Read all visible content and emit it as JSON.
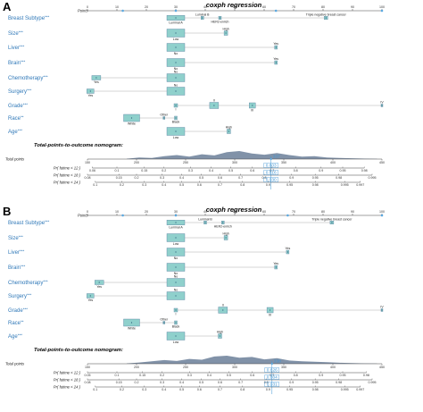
{
  "panels": [
    {
      "letter": "A",
      "title": "coxph regression",
      "points_label": "Points",
      "points_ticks": [
        "0",
        "10",
        "20",
        "30",
        "40",
        "50",
        "60",
        "70",
        "80",
        "90",
        "100"
      ],
      "selected_points": [
        12,
        30,
        64,
        100
      ],
      "variables": [
        {
          "label": "Breast Subtype",
          "sig": "***",
          "levels": [
            {
              "name": "Luminal A",
              "points": 30,
              "box_w": 20,
              "box_h": 5.5
            },
            {
              "name": "Luminal B",
              "points": 39,
              "box_w": 3,
              "box_h": 3.5
            },
            {
              "name": "HER2-enrich",
              "points": 45,
              "box_w": 3,
              "box_h": 3.5
            },
            {
              "name": "Triple negative breast cancer",
              "points": 81,
              "box_w": 4,
              "box_h": 3.5
            }
          ]
        },
        {
          "label": "Size",
          "sig": "***",
          "levels": [
            {
              "name": "Low",
              "points": 30,
              "box_w": 20,
              "box_h": 9
            },
            {
              "name": "High",
              "points": 47,
              "box_w": 4,
              "box_h": 5
            }
          ]
        },
        {
          "label": "Liver",
          "sig": "***",
          "levels": [
            {
              "name": "No",
              "points": 30,
              "box_w": 20,
              "box_h": 9
            },
            {
              "name": "Yes",
              "points": 64,
              "box_w": 3,
              "box_h": 4
            }
          ]
        },
        {
          "label": "Brain",
          "sig": "***",
          "levels": [
            {
              "name": "No",
              "points": 30,
              "box_w": 20,
              "box_h": 9
            },
            {
              "name": "Yes",
              "points": 64,
              "box_w": 3,
              "box_h": 4
            }
          ]
        },
        {
          "label": "Chemotherapy",
          "sig": "***",
          "levels": [
            {
              "name": "Yes",
              "points": 3,
              "box_w": 10,
              "box_h": 5
            },
            {
              "name": "No",
              "points": 30,
              "box_w": 20,
              "box_h": 9
            }
          ]
        },
        {
          "label": "Surgery",
          "sig": "***",
          "levels": [
            {
              "name": "Yes",
              "points": 1,
              "box_w": 8,
              "box_h": 5
            },
            {
              "name": "No",
              "points": 30,
              "box_w": 20,
              "box_h": 9
            }
          ]
        },
        {
          "label": "Grade",
          "sig": "***",
          "levels": [
            {
              "name": "I",
              "points": 30,
              "box_w": 4,
              "box_h": 4
            },
            {
              "name": "II",
              "points": 43,
              "box_w": 10,
              "box_h": 7
            },
            {
              "name": "III",
              "points": 56,
              "box_w": 7,
              "box_h": 6
            },
            {
              "name": "IV",
              "points": 100,
              "box_w": 2,
              "box_h": 3
            }
          ]
        },
        {
          "label": "Race",
          "sig": "**",
          "levels": [
            {
              "name": "White",
              "points": 15,
              "box_w": 18,
              "box_h": 8
            },
            {
              "name": "Other",
              "points": 26,
              "box_w": 2,
              "box_h": 3
            },
            {
              "name": "Black",
              "points": 30,
              "box_w": 3,
              "box_h": 4
            }
          ]
        },
        {
          "label": "Age",
          "sig": "***",
          "levels": [
            {
              "name": "Low",
              "points": 30,
              "box_w": 20,
              "box_h": 9
            },
            {
              "name": "High",
              "points": 48,
              "box_w": 4,
              "box_h": 5
            }
          ]
        }
      ],
      "nomogram_title": "Total-points-to-outcome nomogram:",
      "total_points_label": "Total points",
      "total_min": 150,
      "total_max": 450,
      "total_ticks": [
        "150",
        "200",
        "250",
        "300",
        "350",
        "400",
        "450"
      ],
      "total_selected": 337,
      "total_readout": "337",
      "density": [
        0.05,
        0.2,
        0.15,
        0.35,
        0.5,
        0.3,
        0.6,
        0.45,
        0.85,
        1.0,
        0.7,
        0.55,
        0.75,
        0.5,
        0.3,
        0.35,
        0.2,
        0.15,
        0.1,
        0.06,
        0.03
      ],
      "prob_axes": [
        {
          "label": "Pr( futime < 12 )",
          "readout": "0.603",
          "ticks": [
            {
              "v": "0.06",
              "t": 155
            },
            {
              "v": "0.1",
              "t": 180
            },
            {
              "v": "0.15",
              "t": 208
            },
            {
              "v": "0.2",
              "t": 228
            },
            {
              "v": "0.3",
              "t": 255
            },
            {
              "v": "0.4",
              "t": 276
            },
            {
              "v": "0.5",
              "t": 296
            },
            {
              "v": "0.6",
              "t": 318
            },
            {
              "v": "0.7",
              "t": 338
            },
            {
              "v": "0.8",
              "t": 362
            },
            {
              "v": "0.9",
              "t": 388
            },
            {
              "v": "0.95",
              "t": 410
            },
            {
              "v": "0.98",
              "t": 432
            }
          ]
        },
        {
          "label": "Pr( futime < 18 )",
          "readout": "0.816",
          "ticks": [
            {
              "v": "0.08",
              "t": 150
            },
            {
              "v": "0.15",
              "t": 182
            },
            {
              "v": "0.2",
              "t": 200
            },
            {
              "v": "0.3",
              "t": 226
            },
            {
              "v": "0.4",
              "t": 246
            },
            {
              "v": "0.5",
              "t": 266
            },
            {
              "v": "0.6",
              "t": 285
            },
            {
              "v": "0.7",
              "t": 306
            },
            {
              "v": "0.8",
              "t": 330
            },
            {
              "v": "0.9",
              "t": 358
            },
            {
              "v": "0.95",
              "t": 382
            },
            {
              "v": "0.98",
              "t": 406
            },
            {
              "v": "0.995",
              "t": 440
            }
          ]
        },
        {
          "label": "Pr( futime < 24 )",
          "readout": "0.930",
          "ticks": [
            {
              "v": "0.1",
              "t": 158
            },
            {
              "v": "0.2",
              "t": 185
            },
            {
              "v": "0.3",
              "t": 208
            },
            {
              "v": "0.4",
              "t": 228
            },
            {
              "v": "0.5",
              "t": 246
            },
            {
              "v": "0.6",
              "t": 264
            },
            {
              "v": "0.7",
              "t": 285
            },
            {
              "v": "0.8",
              "t": 308
            },
            {
              "v": "0.9",
              "t": 334
            },
            {
              "v": "0.95",
              "t": 356
            },
            {
              "v": "0.98",
              "t": 382
            },
            {
              "v": "0.995",
              "t": 412
            },
            {
              "v": "0.997",
              "t": 428
            }
          ]
        }
      ]
    },
    {
      "letter": "B",
      "title": "coxph regression",
      "points_label": "Points",
      "points_ticks": [
        "0",
        "10",
        "20",
        "30",
        "40",
        "50",
        "60",
        "70",
        "80",
        "90",
        "100"
      ],
      "selected_points": [
        12,
        30,
        68,
        100
      ],
      "variables": [
        {
          "label": "Breast Subtype",
          "sig": "***",
          "levels": [
            {
              "name": "Luminal A",
              "points": 30,
              "box_w": 20,
              "box_h": 5.5
            },
            {
              "name": "Luminal B",
              "points": 40,
              "box_w": 3,
              "box_h": 3.5
            },
            {
              "name": "HER2-enrich",
              "points": 46,
              "box_w": 3,
              "box_h": 3.5
            },
            {
              "name": "Triple negative breast cancer",
              "points": 83,
              "box_w": 4,
              "box_h": 3.5
            }
          ]
        },
        {
          "label": "Size",
          "sig": "***",
          "levels": [
            {
              "name": "Low",
              "points": 30,
              "box_w": 20,
              "box_h": 9
            },
            {
              "name": "High",
              "points": 47,
              "box_w": 4,
              "box_h": 5
            }
          ]
        },
        {
          "label": "Liver",
          "sig": "***",
          "levels": [
            {
              "name": "No",
              "points": 30,
              "box_w": 20,
              "box_h": 9
            },
            {
              "name": "Yes",
              "points": 68,
              "box_w": 3,
              "box_h": 4
            }
          ]
        },
        {
          "label": "Brain",
          "sig": "***",
          "levels": [
            {
              "name": "No",
              "points": 30,
              "box_w": 20,
              "box_h": 9
            },
            {
              "name": "Yes",
              "points": 64,
              "box_w": 3,
              "box_h": 4
            }
          ]
        },
        {
          "label": "Chemotherapy",
          "sig": "***",
          "levels": [
            {
              "name": "Yes",
              "points": 4,
              "box_w": 10,
              "box_h": 5
            },
            {
              "name": "No",
              "points": 30,
              "box_w": 20,
              "box_h": 9
            }
          ]
        },
        {
          "label": "Surgery",
          "sig": "***",
          "levels": [
            {
              "name": "Yes",
              "points": 1,
              "box_w": 8,
              "box_h": 5
            },
            {
              "name": "No",
              "points": 30,
              "box_w": 20,
              "box_h": 9
            }
          ]
        },
        {
          "label": "Grade",
          "sig": "***",
          "levels": [
            {
              "name": "I",
              "points": 30,
              "box_w": 4,
              "box_h": 4
            },
            {
              "name": "II",
              "points": 46,
              "box_w": 10,
              "box_h": 7
            },
            {
              "name": "III",
              "points": 62,
              "box_w": 7,
              "box_h": 6
            },
            {
              "name": "IV",
              "points": 100,
              "box_w": 2,
              "box_h": 3
            }
          ]
        },
        {
          "label": "Race",
          "sig": "**",
          "levels": [
            {
              "name": "White",
              "points": 15,
              "box_w": 18,
              "box_h": 8
            },
            {
              "name": "Other",
              "points": 26,
              "box_w": 2,
              "box_h": 3
            },
            {
              "name": "Black",
              "points": 30,
              "box_w": 3,
              "box_h": 4
            }
          ]
        },
        {
          "label": "Age",
          "sig": "***",
          "levels": [
            {
              "name": "Low",
              "points": 30,
              "box_w": 20,
              "box_h": 9
            },
            {
              "name": "High",
              "points": 45,
              "box_w": 4,
              "box_h": 5
            }
          ]
        }
      ],
      "nomogram_title": "Total-points-to-outcome nomogram:",
      "total_points_label": "Total points",
      "total_min": 150,
      "total_max": 450,
      "total_ticks": [
        "150",
        "200",
        "250",
        "300",
        "350",
        "400",
        "450"
      ],
      "total_selected": 338,
      "total_readout": "338",
      "density": [
        0.05,
        0.15,
        0.3,
        0.45,
        0.35,
        0.6,
        0.5,
        0.9,
        1.0,
        0.75,
        0.85,
        0.55,
        0.7,
        0.4,
        0.3,
        0.25,
        0.2,
        0.12,
        0.08,
        0.05,
        0.03
      ],
      "prob_axes": [
        {
          "label": "Pr( futime < 12 )",
          "readout": "0.626",
          "ticks": [
            {
              "v": "0.05",
              "t": 150
            },
            {
              "v": "0.1",
              "t": 180
            },
            {
              "v": "0.15",
              "t": 206
            },
            {
              "v": "0.2",
              "t": 226
            },
            {
              "v": "0.3",
              "t": 254
            },
            {
              "v": "0.4",
              "t": 274
            },
            {
              "v": "0.5",
              "t": 294
            },
            {
              "v": "0.6",
              "t": 318
            },
            {
              "v": "0.7",
              "t": 338
            },
            {
              "v": "0.8",
              "t": 362
            },
            {
              "v": "0.9",
              "t": 388
            },
            {
              "v": "0.95",
              "t": 410
            },
            {
              "v": "0.98",
              "t": 434
            }
          ]
        },
        {
          "label": "Pr( futime < 18 )",
          "readout": "0.804",
          "ticks": [
            {
              "v": "0.08",
              "t": 150
            },
            {
              "v": "0.15",
              "t": 182
            },
            {
              "v": "0.2",
              "t": 200
            },
            {
              "v": "0.3",
              "t": 226
            },
            {
              "v": "0.4",
              "t": 246
            },
            {
              "v": "0.5",
              "t": 266
            },
            {
              "v": "0.6",
              "t": 285
            },
            {
              "v": "0.7",
              "t": 306
            },
            {
              "v": "0.8",
              "t": 332
            },
            {
              "v": "0.9",
              "t": 358
            },
            {
              "v": "0.95",
              "t": 382
            },
            {
              "v": "0.98",
              "t": 406
            },
            {
              "v": "0.995",
              "t": 440
            }
          ]
        },
        {
          "label": "Pr( futime < 24 )",
          "readout": "0.931",
          "ticks": [
            {
              "v": "0.1",
              "t": 158
            },
            {
              "v": "0.2",
              "t": 185
            },
            {
              "v": "0.3",
              "t": 208
            },
            {
              "v": "0.4",
              "t": 228
            },
            {
              "v": "0.5",
              "t": 246
            },
            {
              "v": "0.6",
              "t": 264
            },
            {
              "v": "0.7",
              "t": 285
            },
            {
              "v": "0.8",
              "t": 308
            },
            {
              "v": "0.9",
              "t": 334
            },
            {
              "v": "0.95",
              "t": 356
            },
            {
              "v": "0.98",
              "t": 382
            },
            {
              "v": "0.995",
              "t": 412
            },
            {
              "v": "0.997",
              "t": 428
            }
          ]
        }
      ]
    }
  ],
  "colors": {
    "box_fill": "#8fd0cc",
    "box_stroke": "#5a7fa0",
    "label_blue": "#2f78b8",
    "readout_blue": "#3f95d4",
    "marker_fill": "#5aa8e0",
    "density_fill": "#6b7f99",
    "axis": "#444444"
  }
}
